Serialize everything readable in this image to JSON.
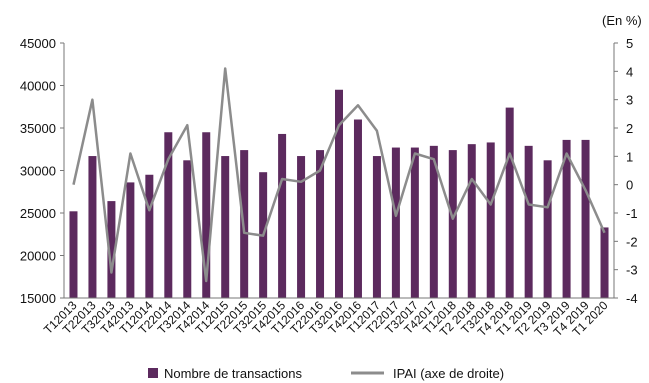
{
  "chart_data": {
    "type": "bar",
    "categories": [
      "T12013",
      "T22013",
      "T32013",
      "T42013",
      "T12014",
      "T22014",
      "T32014",
      "T42014",
      "T12015",
      "T22015",
      "T32015",
      "T42015",
      "T12016",
      "T22016",
      "T32016",
      "T42016",
      "T12017",
      "T22017",
      "T32017",
      "T42017",
      "T12018",
      "T2 2018",
      "T32018",
      "T4 2018",
      "T1 2019",
      "T2 2019",
      "T3 2019",
      "T4 2019",
      "T1 2020"
    ],
    "series": [
      {
        "name": "Nombre de transactions",
        "type": "bar",
        "axis": "left",
        "color": "#5c2a5e",
        "values": [
          25200,
          31700,
          26400,
          28600,
          29500,
          34500,
          31200,
          34500,
          31700,
          32400,
          29800,
          34300,
          31700,
          32400,
          39500,
          36000,
          31700,
          32700,
          32700,
          32900,
          32400,
          33100,
          33300,
          37400,
          32900,
          31200,
          33600,
          33600,
          23300
        ]
      },
      {
        "name": "IPAI (axe de droite)",
        "type": "line",
        "axis": "right",
        "color": "#8c8c8c",
        "values": [
          0,
          3.0,
          -3.1,
          1.1,
          -0.9,
          0.9,
          2.1,
          -3.4,
          4.1,
          -1.7,
          -1.8,
          0.2,
          0.1,
          0.5,
          2.1,
          2.8,
          1.9,
          -1.1,
          1.1,
          0.9,
          -1.2,
          0.2,
          -0.7,
          1.1,
          -0.7,
          -0.8,
          1.1,
          -0.2,
          -1.7
        ]
      }
    ],
    "y_left": {
      "min": 15000,
      "max": 45000,
      "ticks": [
        "45000",
        "40000",
        "35000",
        "30000",
        "25000",
        "20000",
        "15000"
      ]
    },
    "y_right": {
      "min": -4,
      "max": 5,
      "ticks": [
        "5",
        "4",
        "3",
        "2",
        "1",
        "0",
        "-1",
        "-2",
        "-3",
        "-4"
      ],
      "unit": "(En %)"
    },
    "legend_position": "bottom",
    "grid": false
  }
}
